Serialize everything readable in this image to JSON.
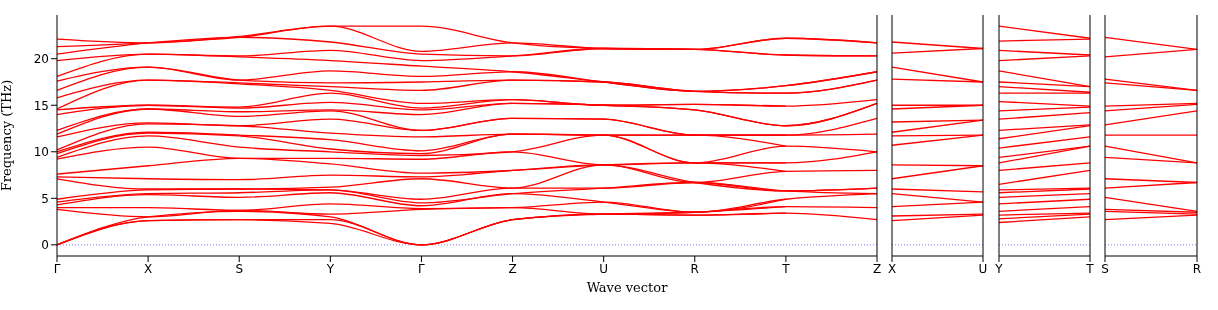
{
  "chart_data": [
    {
      "type": "line",
      "xlabel": "Wave vector",
      "ylabel": "Frequency (THz)",
      "categories": [
        "Γ",
        "X",
        "S",
        "Y",
        "Γ",
        "Z",
        "U",
        "R",
        "T",
        "Z"
      ],
      "ylim": [
        -1.2,
        24.7
      ],
      "yticks": [
        0,
        5,
        10,
        15,
        20
      ],
      "ref_lines": [
        {
          "axis": "y",
          "value": 0,
          "color": "#7f7fff",
          "line_style": "dotted"
        }
      ],
      "series": [
        {
          "color": "#ff0000",
          "values": [
            0,
            2.6,
            2.7,
            2.3,
            0,
            2.7,
            3.3,
            3.2,
            3.4,
            2.7
          ]
        },
        {
          "color": "#ff0000",
          "values": [
            0,
            2.6,
            2.7,
            2.7,
            0,
            2.7,
            3.3,
            3.2,
            3.4,
            null
          ]
        },
        {
          "color": "#ff0000",
          "values": [
            0,
            3.0,
            3.6,
            3.0,
            0,
            2.7,
            3.3,
            3.5,
            4.1,
            null
          ]
        },
        {
          "color": "#ff0000",
          "values": [
            3.8,
            3.0,
            3.7,
            3.3,
            3.8,
            4.0,
            3.3,
            3.5,
            4.1,
            4.0
          ]
        },
        {
          "color": "#ff0000",
          "values": [
            4.0,
            4.0,
            3.7,
            4.4,
            3.9,
            4.0,
            4.6,
            3.5,
            4.9,
            null
          ]
        },
        {
          "color": "#ff0000",
          "values": [
            4.3,
            5.4,
            5.1,
            5.6,
            4.2,
            5.5,
            4.6,
            3.5,
            4.9,
            5.5
          ]
        },
        {
          "color": "#ff0000",
          "values": [
            4.6,
            5.5,
            5.6,
            5.9,
            4.5,
            5.5,
            6.1,
            6.7,
            5.8,
            5.5
          ]
        },
        {
          "color": "#ff0000",
          "values": [
            4.9,
            5.9,
            6.0,
            5.9,
            4.9,
            6.1,
            6.1,
            6.7,
            5.8,
            6.1
          ]
        },
        {
          "color": "#ff0000",
          "values": [
            7.1,
            6.0,
            6.0,
            6.2,
            7.1,
            6.1,
            8.6,
            6.7,
            5.8,
            6.1
          ]
        },
        {
          "color": "#ff0000",
          "values": [
            7.3,
            7.1,
            7.0,
            7.5,
            7.3,
            8.0,
            8.6,
            6.7,
            7.9,
            8.0
          ]
        },
        {
          "color": "#ff0000",
          "values": [
            7.6,
            8.5,
            9.3,
            8.7,
            7.7,
            8.0,
            8.6,
            8.8,
            7.9,
            null
          ]
        },
        {
          "color": "#ff0000",
          "values": [
            9.2,
            10.5,
            9.3,
            9.3,
            9.2,
            10.0,
            8.6,
            8.8,
            8.8,
            10.0
          ]
        },
        {
          "color": "#ff0000",
          "values": [
            9.4,
            11.7,
            10.5,
            10.0,
            9.6,
            10.0,
            11.8,
            8.8,
            8.8,
            null
          ]
        },
        {
          "color": "#ff0000",
          "values": [
            9.8,
            12.0,
            11.7,
            10.3,
            9.8,
            11.9,
            11.8,
            8.8,
            10.6,
            10.0
          ]
        },
        {
          "color": "#ff0000",
          "values": [
            10.0,
            12.1,
            11.8,
            11.3,
            10.1,
            11.9,
            11.8,
            11.8,
            10.6,
            null
          ]
        },
        {
          "color": "#ff0000",
          "values": [
            10.2,
            13.0,
            12.8,
            12.0,
            11.6,
            11.9,
            11.8,
            11.8,
            11.8,
            11.9
          ]
        },
        {
          "color": "#ff0000",
          "values": [
            11.6,
            13.1,
            12.8,
            13.5,
            12.3,
            13.6,
            13.5,
            11.8,
            11.8,
            13.6
          ]
        },
        {
          "color": "#ff0000",
          "values": [
            11.9,
            14.6,
            13.8,
            14.4,
            12.3,
            13.6,
            13.5,
            11.8,
            11.8,
            null
          ]
        },
        {
          "color": "#ff0000",
          "values": [
            12.3,
            14.6,
            14.3,
            14.5,
            14.0,
            15.2,
            15.0,
            14.5,
            12.8,
            15.2
          ]
        },
        {
          "color": "#ff0000",
          "values": [
            14.0,
            15.0,
            14.7,
            15.3,
            14.5,
            15.2,
            15.0,
            14.5,
            12.8,
            15.2
          ]
        },
        {
          "color": "#ff0000",
          "values": [
            14.5,
            15.0,
            14.8,
            16.3,
            14.7,
            15.6,
            15.0,
            15.1,
            14.9,
            15.6
          ]
        },
        {
          "color": "#ff0000",
          "values": [
            14.6,
            17.7,
            17.3,
            16.6,
            15.2,
            15.6,
            15.0,
            15.1,
            14.9,
            null
          ]
        },
        {
          "color": "#ff0000",
          "values": [
            15.8,
            17.7,
            17.4,
            17.0,
            16.6,
            17.7,
            17.5,
            16.5,
            16.3,
            17.7
          ]
        },
        {
          "color": "#ff0000",
          "values": [
            16.6,
            19.1,
            17.7,
            17.4,
            17.5,
            17.7,
            17.5,
            16.5,
            16.3,
            17.7
          ]
        },
        {
          "color": "#ff0000",
          "values": [
            17.6,
            19.1,
            17.7,
            18.7,
            18.1,
            18.6,
            17.5,
            16.5,
            17.1,
            18.6
          ]
        },
        {
          "color": "#ff0000",
          "values": [
            18.1,
            20.5,
            20.2,
            19.8,
            19.2,
            18.6,
            17.5,
            16.5,
            17.1,
            18.6
          ]
        },
        {
          "color": "#ff0000",
          "values": [
            19.8,
            20.5,
            20.3,
            20.9,
            19.8,
            20.3,
            21.1,
            21.0,
            20.4,
            20.3
          ]
        },
        {
          "color": "#ff0000",
          "values": [
            20.5,
            21.7,
            22.3,
            21.8,
            20.5,
            20.3,
            21.1,
            21.0,
            20.4,
            20.3
          ]
        },
        {
          "color": "#ff0000",
          "values": [
            21.3,
            21.7,
            22.3,
            23.5,
            20.8,
            21.7,
            21.1,
            21.0,
            22.2,
            21.7
          ]
        },
        {
          "color": "#ff0000",
          "values": [
            22.1,
            21.7,
            22.4,
            23.5,
            23.5,
            21.7,
            21.1,
            21.0,
            22.2,
            21.7
          ]
        }
      ]
    },
    {
      "type": "line",
      "tick_labels": "x",
      "categories": [
        "X",
        "U"
      ],
      "ylim": [
        -1.2,
        24.7
      ],
      "ref_lines": [
        {
          "axis": "y",
          "value": 0,
          "color": "#7f7fff",
          "line_style": "dotted"
        }
      ],
      "series": [
        {
          "color": "#ff0000",
          "values": [
            2.6,
            3.2
          ]
        },
        {
          "color": "#ff0000",
          "values": [
            3.1,
            3.3
          ]
        },
        {
          "color": "#ff0000",
          "values": [
            4.1,
            4.6
          ]
        },
        {
          "color": "#ff0000",
          "values": [
            5.5,
            4.6
          ]
        },
        {
          "color": "#ff0000",
          "values": [
            6.0,
            5.7
          ]
        },
        {
          "color": "#ff0000",
          "values": [
            7.1,
            8.5
          ]
        },
        {
          "color": "#ff0000",
          "values": [
            8.6,
            8.5
          ]
        },
        {
          "color": "#ff0000",
          "values": [
            10.7,
            11.8
          ]
        },
        {
          "color": "#ff0000",
          "values": [
            11.7,
            11.8
          ]
        },
        {
          "color": "#ff0000",
          "values": [
            12.1,
            13.4
          ]
        },
        {
          "color": "#ff0000",
          "values": [
            13.2,
            13.4
          ]
        },
        {
          "color": "#ff0000",
          "values": [
            14.6,
            15.0
          ]
        },
        {
          "color": "#ff0000",
          "values": [
            15.0,
            15.0
          ]
        },
        {
          "color": "#ff0000",
          "values": [
            17.8,
            17.5
          ]
        },
        {
          "color": "#ff0000",
          "values": [
            19.1,
            17.5
          ]
        },
        {
          "color": "#ff0000",
          "values": [
            20.6,
            21.1
          ]
        },
        {
          "color": "#ff0000",
          "values": [
            21.8,
            21.1
          ]
        }
      ]
    },
    {
      "type": "line",
      "tick_labels": "x",
      "categories": [
        "Y",
        "T"
      ],
      "ylim": [
        -1.2,
        24.7
      ],
      "ref_lines": [
        {
          "axis": "y",
          "value": 0,
          "color": "#7f7fff",
          "line_style": "dotted"
        }
      ],
      "series": [
        {
          "color": "#ff0000",
          "values": [
            2.4,
            3.0
          ]
        },
        {
          "color": "#ff0000",
          "values": [
            2.8,
            3.3
          ]
        },
        {
          "color": "#ff0000",
          "values": [
            3.2,
            3.4
          ]
        },
        {
          "color": "#ff0000",
          "values": [
            3.6,
            4.1
          ]
        },
        {
          "color": "#ff0000",
          "values": [
            4.4,
            4.9
          ]
        },
        {
          "color": "#ff0000",
          "values": [
            5.1,
            5.5
          ]
        },
        {
          "color": "#ff0000",
          "values": [
            5.6,
            6.0
          ]
        },
        {
          "color": "#ff0000",
          "values": [
            5.9,
            6.1
          ]
        },
        {
          "color": "#ff0000",
          "values": [
            6.5,
            8.0
          ]
        },
        {
          "color": "#ff0000",
          "values": [
            8.0,
            8.8
          ]
        },
        {
          "color": "#ff0000",
          "values": [
            8.8,
            10.6
          ]
        },
        {
          "color": "#ff0000",
          "values": [
            9.4,
            10.6
          ]
        },
        {
          "color": "#ff0000",
          "values": [
            10.4,
            11.6
          ]
        },
        {
          "color": "#ff0000",
          "values": [
            11.4,
            12.8
          ]
        },
        {
          "color": "#ff0000",
          "values": [
            12.3,
            12.9
          ]
        },
        {
          "color": "#ff0000",
          "values": [
            13.5,
            14.2
          ]
        },
        {
          "color": "#ff0000",
          "values": [
            14.4,
            14.8
          ]
        },
        {
          "color": "#ff0000",
          "values": [
            15.4,
            14.9
          ]
        },
        {
          "color": "#ff0000",
          "values": [
            16.3,
            16.3
          ]
        },
        {
          "color": "#ff0000",
          "values": [
            17.0,
            16.4
          ]
        },
        {
          "color": "#ff0000",
          "values": [
            17.5,
            17.0
          ]
        },
        {
          "color": "#ff0000",
          "values": [
            18.7,
            17.0
          ]
        },
        {
          "color": "#ff0000",
          "values": [
            19.8,
            20.3
          ]
        },
        {
          "color": "#ff0000",
          "values": [
            20.9,
            20.4
          ]
        },
        {
          "color": "#ff0000",
          "values": [
            21.9,
            22.1
          ]
        },
        {
          "color": "#ff0000",
          "values": [
            23.5,
            22.2
          ]
        }
      ]
    },
    {
      "type": "line",
      "tick_labels": "x",
      "categories": [
        "S",
        "R"
      ],
      "ylim": [
        -1.2,
        24.7
      ],
      "ref_lines": [
        {
          "axis": "y",
          "value": 0,
          "color": "#7f7fff",
          "line_style": "dotted"
        }
      ],
      "series": [
        {
          "color": "#ff0000",
          "values": [
            2.7,
            3.2
          ]
        },
        {
          "color": "#ff0000",
          "values": [
            3.6,
            3.3
          ]
        },
        {
          "color": "#ff0000",
          "values": [
            3.8,
            3.5
          ]
        },
        {
          "color": "#ff0000",
          "values": [
            5.1,
            3.6
          ]
        },
        {
          "color": "#ff0000",
          "values": [
            6.1,
            6.7
          ]
        },
        {
          "color": "#ff0000",
          "values": [
            7.1,
            6.7
          ]
        },
        {
          "color": "#ff0000",
          "values": [
            9.4,
            8.8
          ]
        },
        {
          "color": "#ff0000",
          "values": [
            10.6,
            8.8
          ]
        },
        {
          "color": "#ff0000",
          "values": [
            11.8,
            11.8
          ]
        },
        {
          "color": "#ff0000",
          "values": [
            12.9,
            14.4
          ]
        },
        {
          "color": "#ff0000",
          "values": [
            14.4,
            15.1
          ]
        },
        {
          "color": "#ff0000",
          "values": [
            14.9,
            15.2
          ]
        },
        {
          "color": "#ff0000",
          "values": [
            17.4,
            16.6
          ]
        },
        {
          "color": "#ff0000",
          "values": [
            17.8,
            16.6
          ]
        },
        {
          "color": "#ff0000",
          "values": [
            20.2,
            21.0
          ]
        },
        {
          "color": "#ff0000",
          "values": [
            22.3,
            21.0
          ]
        }
      ]
    }
  ]
}
